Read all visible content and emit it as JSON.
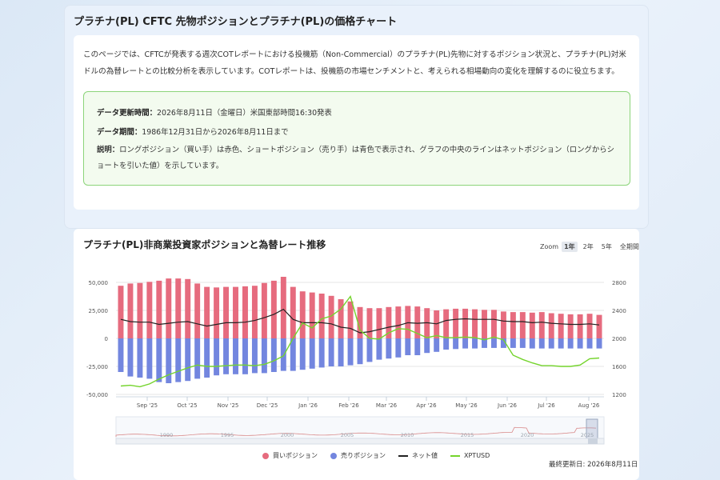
{
  "header": {
    "title": "プラチナ(PL) CFTC 先物ポジションとプラチナ(PL)の価格チャート"
  },
  "intro": {
    "text": "このページでは、CFTCが発表する週次COTレポートにおける投機筋（Non-Commercial）のプラチナ(PL)先物に対するポジション状況と、プラチナ(PL)対米ドルの為替レートとの比較分析を表示しています。COTレポートは、投機筋の市場センチメントと、考えられる相場動向の変化を理解するのに役立ちます。"
  },
  "notes": {
    "update_label": "データ更新時間：",
    "update_value": "2026年8月11日（金曜日）米国東部時間16:30発表",
    "period_label": "データ期間：",
    "period_value": "1986年12月31日から2026年8月11日まで",
    "desc_label": "説明：",
    "desc_value": "ロングポジション（買い手）は赤色、ショートポジション（売り手）は青色で表示され、グラフの中央のラインはネットポジション（ロングからショートを引いた値）を示しています。"
  },
  "chart_section": {
    "title": "プラチナ(PL)非商業投資家ポジションと為替レート推移",
    "zoom_label": "Zoom",
    "zoom_options": [
      "1年",
      "2年",
      "5年",
      "全期間"
    ],
    "zoom_active": "1年",
    "updated": "最終更新日: 2026年8月11日"
  },
  "legend": {
    "long": "買いポジション",
    "short": "売りポジション",
    "net": "ネット値",
    "price": "XPTUSD"
  },
  "colors": {
    "long": "#e66b7e",
    "short": "#7386df",
    "net": "#222222",
    "price": "#74d42c"
  },
  "chart_data": {
    "type": "bar",
    "x_ticks": [
      "Sep '25",
      "Oct '25",
      "Nov '25",
      "Dec '25",
      "Jan '26",
      "Feb '26",
      "Mar '26",
      "Apr '26",
      "May '26",
      "Jun '26",
      "Jul '26",
      "Aug '26"
    ],
    "y_left": {
      "range": [
        -50000,
        50000
      ],
      "ticks": [
        50000,
        25000,
        0,
        -25000,
        -50000
      ],
      "tick_labels": [
        "50,000",
        "25,000",
        "0",
        "-25,000",
        "-50,000"
      ]
    },
    "y_right": {
      "range": [
        1200,
        2800
      ],
      "ticks": [
        2800,
        2400,
        2000,
        1600,
        1200
      ],
      "tick_labels": [
        "2800",
        "2400",
        "2000",
        "1600",
        "1200"
      ]
    },
    "navigator_years": [
      "1990",
      "1995",
      "2000",
      "2005",
      "2010",
      "2015",
      "2020",
      "2025"
    ],
    "long": [
      47000,
      49000,
      49500,
      50500,
      51500,
      53500,
      53500,
      53000,
      49000,
      46000,
      45500,
      46000,
      46000,
      46500,
      47000,
      49500,
      51500,
      55000,
      46000,
      42000,
      41000,
      40000,
      38000,
      35000,
      33000,
      28000,
      27000,
      27000,
      28000,
      28500,
      29000,
      28500,
      27000,
      25000,
      26000,
      26500,
      26500,
      26000,
      25500,
      25500,
      24000,
      23500,
      23500,
      23000,
      23500,
      22500,
      22000,
      21500,
      21500,
      22000,
      21000
    ],
    "short": [
      -30000,
      -34000,
      -35000,
      -36000,
      -39000,
      -40000,
      -39000,
      -38000,
      -36000,
      -35000,
      -33000,
      -32000,
      -32000,
      -32000,
      -31000,
      -31000,
      -30000,
      -29000,
      -29000,
      -28000,
      -27000,
      -26000,
      -25000,
      -25000,
      -24000,
      -23000,
      -21000,
      -19000,
      -18000,
      -17000,
      -15000,
      -15000,
      -13000,
      -12000,
      -10000,
      -9500,
      -9000,
      -9000,
      -8500,
      -8500,
      -8500,
      -8500,
      -8500,
      -9000,
      -9000,
      -9000,
      -9000,
      -9000,
      -9000,
      -9000,
      -9000
    ],
    "net": [
      17000,
      15000,
      14500,
      14500,
      12500,
      13500,
      14500,
      15000,
      13000,
      11000,
      12500,
      14000,
      14000,
      14500,
      16000,
      18500,
      21500,
      26000,
      17000,
      14000,
      14000,
      14000,
      13000,
      10000,
      9000,
      5000,
      6000,
      8000,
      10000,
      11500,
      14000,
      13500,
      14000,
      13000,
      16000,
      17000,
      17500,
      17000,
      17000,
      17000,
      15500,
      15000,
      15000,
      14000,
      14500,
      13500,
      13000,
      12500,
      12500,
      13000,
      12000
    ],
    "price": [
      1320,
      1330,
      1310,
      1350,
      1420,
      1480,
      1530,
      1580,
      1620,
      1600,
      1600,
      1610,
      1620,
      1620,
      1610,
      1630,
      1680,
      1750,
      2000,
      2220,
      2150,
      2280,
      2320,
      2420,
      2600,
      2120,
      2000,
      1990,
      2080,
      2140,
      2130,
      2070,
      2010,
      2040,
      2010,
      2010,
      2020,
      2010,
      1980,
      2020,
      1980,
      1760,
      1700,
      1650,
      1610,
      1610,
      1600,
      1600,
      1620,
      1710,
      1720
    ]
  }
}
